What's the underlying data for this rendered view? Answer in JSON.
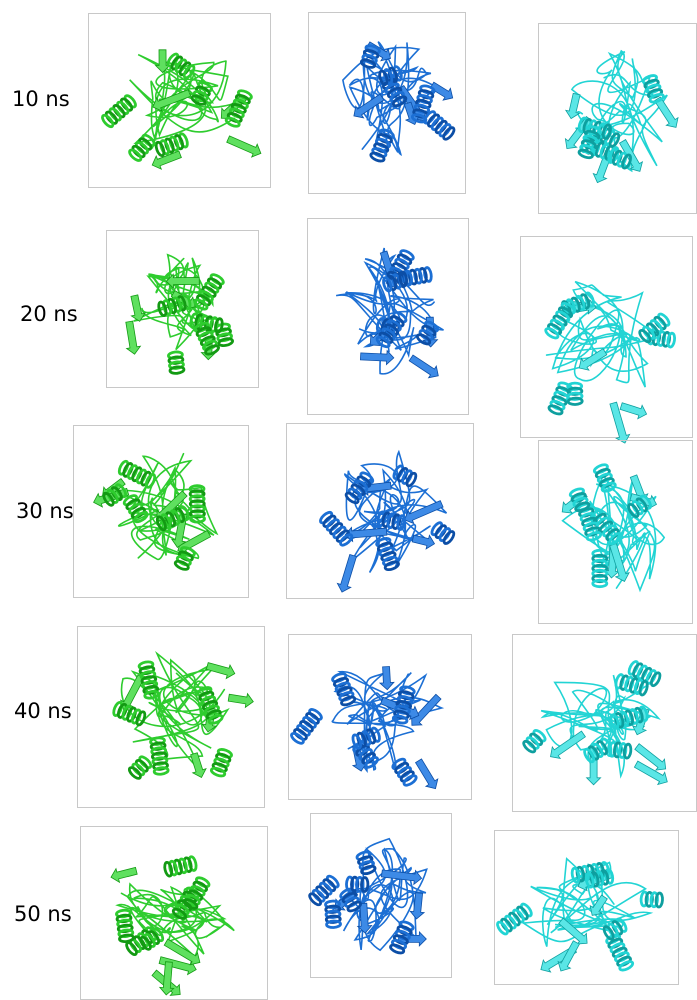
{
  "rows": [
    "10 ns",
    "20 ns",
    "30 ns",
    "40 ns",
    "50 ns"
  ]
}
